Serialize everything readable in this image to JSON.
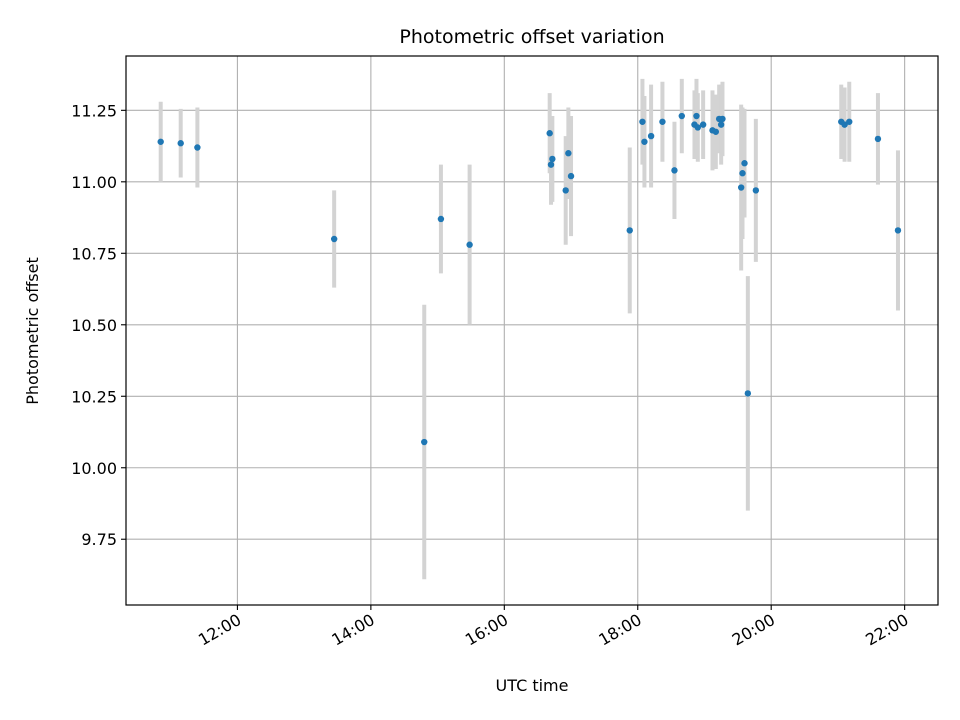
{
  "chart_data": {
    "type": "scatter",
    "title": "Photometric offset variation",
    "xlabel": "UTC time",
    "ylabel": "Photometric offset",
    "x_unit": "hours (UTC)",
    "xlim": [
      10.33,
      22.5
    ],
    "ylim": [
      9.52,
      11.44
    ],
    "xticks": [
      {
        "value": 12,
        "label": "12:00"
      },
      {
        "value": 14,
        "label": "14:00"
      },
      {
        "value": 16,
        "label": "16:00"
      },
      {
        "value": 18,
        "label": "18:00"
      },
      {
        "value": 20,
        "label": "20:00"
      },
      {
        "value": 22,
        "label": "22:00"
      }
    ],
    "yticks": [
      {
        "value": 9.75,
        "label": "9.75"
      },
      {
        "value": 10.0,
        "label": "10.00"
      },
      {
        "value": 10.25,
        "label": "10.25"
      },
      {
        "value": 10.5,
        "label": "10.50"
      },
      {
        "value": 10.75,
        "label": "10.75"
      },
      {
        "value": 11.0,
        "label": "11.00"
      },
      {
        "value": 11.25,
        "label": "11.25"
      }
    ],
    "grid": true,
    "marker_color": "#1f77b4",
    "errorbar_color": "#d3d3d3",
    "points": [
      {
        "x": 10.85,
        "y": 11.14,
        "err": 0.14
      },
      {
        "x": 11.15,
        "y": 11.135,
        "err": 0.12
      },
      {
        "x": 11.4,
        "y": 11.12,
        "err": 0.14
      },
      {
        "x": 13.45,
        "y": 10.8,
        "err": 0.17
      },
      {
        "x": 14.8,
        "y": 10.09,
        "err": 0.48
      },
      {
        "x": 15.05,
        "y": 10.87,
        "err": 0.19
      },
      {
        "x": 15.48,
        "y": 10.78,
        "err": 0.28
      },
      {
        "x": 16.68,
        "y": 11.17,
        "err": 0.14
      },
      {
        "x": 16.7,
        "y": 11.06,
        "err": 0.14
      },
      {
        "x": 16.72,
        "y": 11.08,
        "err": 0.15
      },
      {
        "x": 16.92,
        "y": 10.97,
        "err": 0.19
      },
      {
        "x": 16.96,
        "y": 11.1,
        "err": 0.16
      },
      {
        "x": 17.0,
        "y": 11.02,
        "err": 0.21
      },
      {
        "x": 17.88,
        "y": 10.83,
        "err": 0.29
      },
      {
        "x": 18.07,
        "y": 11.21,
        "err": 0.15
      },
      {
        "x": 18.1,
        "y": 11.14,
        "err": 0.16
      },
      {
        "x": 18.2,
        "y": 11.16,
        "err": 0.18
      },
      {
        "x": 18.37,
        "y": 11.21,
        "err": 0.14
      },
      {
        "x": 18.55,
        "y": 11.04,
        "err": 0.17
      },
      {
        "x": 18.66,
        "y": 11.23,
        "err": 0.13
      },
      {
        "x": 18.85,
        "y": 11.2,
        "err": 0.12
      },
      {
        "x": 18.88,
        "y": 11.23,
        "err": 0.13
      },
      {
        "x": 18.9,
        "y": 11.19,
        "err": 0.12
      },
      {
        "x": 18.98,
        "y": 11.2,
        "err": 0.12
      },
      {
        "x": 19.12,
        "y": 11.18,
        "err": 0.14
      },
      {
        "x": 19.17,
        "y": 11.175,
        "err": 0.13
      },
      {
        "x": 19.22,
        "y": 11.22,
        "err": 0.12
      },
      {
        "x": 19.25,
        "y": 11.2,
        "err": 0.14
      },
      {
        "x": 19.27,
        "y": 11.22,
        "err": 0.13
      },
      {
        "x": 19.55,
        "y": 10.98,
        "err": 0.29
      },
      {
        "x": 19.57,
        "y": 11.03,
        "err": 0.23
      },
      {
        "x": 19.6,
        "y": 11.065,
        "err": 0.19
      },
      {
        "x": 19.65,
        "y": 10.26,
        "err": 0.41
      },
      {
        "x": 19.77,
        "y": 10.97,
        "err": 0.25
      },
      {
        "x": 21.05,
        "y": 11.21,
        "err": 0.13
      },
      {
        "x": 21.1,
        "y": 11.2,
        "err": 0.13
      },
      {
        "x": 21.17,
        "y": 11.21,
        "err": 0.14
      },
      {
        "x": 21.6,
        "y": 11.15,
        "err": 0.16
      },
      {
        "x": 21.9,
        "y": 10.83,
        "err": 0.28
      }
    ]
  }
}
